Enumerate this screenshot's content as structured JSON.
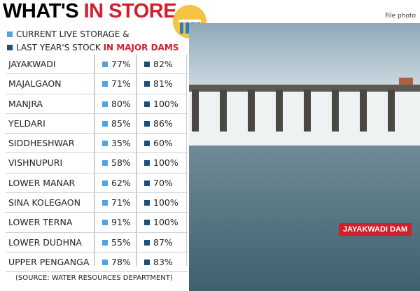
{
  "header": {
    "title": "WHAT'S",
    "title_highlight": "IN STORE"
  },
  "legend": {
    "line1": "CURRENT LIVE STORAGE &",
    "line2": "LAST YEAR'S STOCK",
    "line2_highlight": "IN MAJOR DAMS"
  },
  "table": {
    "rows": [
      [
        "JAYAKWADI",
        "77%",
        "82%"
      ],
      [
        "MAJALGAON",
        "71%",
        "81%"
      ],
      [
        "MANJRA",
        "80%",
        "100%"
      ],
      [
        "YELDARI",
        "85%",
        "86%"
      ],
      [
        "SIDDHESHWAR",
        "35%",
        "60%"
      ],
      [
        "VISHNUPURI",
        "58%",
        "100%"
      ],
      [
        "LOWER MANAR",
        "62%",
        "70%"
      ],
      [
        "SINA KOLEGAON",
        "71%",
        "100%"
      ],
      [
        "LOWER TERNA",
        "91%",
        "100%"
      ],
      [
        "LOWER DUDHNA",
        "55%",
        "87%"
      ],
      [
        "UPPER PENGANGA",
        "78%",
        "83%"
      ]
    ]
  },
  "source": "(SOURCE: WATER RESOURCES DEPARTMENT)",
  "photo": {
    "credit": "File photo",
    "caption": "JAYAKWADI DAM"
  }
}
